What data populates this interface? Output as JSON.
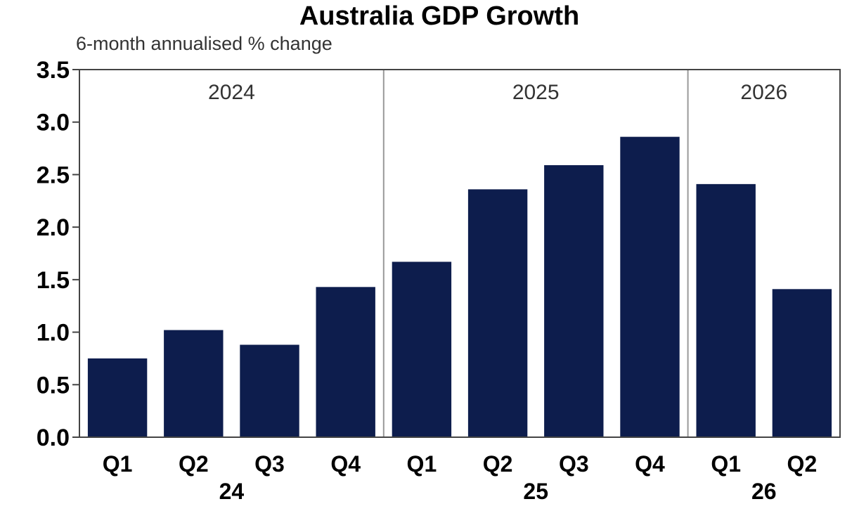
{
  "chart_data": {
    "type": "bar",
    "title": "Australia GDP Growth",
    "subtitle": "6-month annualised % change",
    "categories": [
      "Q1",
      "Q2",
      "Q3",
      "Q4",
      "Q1",
      "Q2",
      "Q3",
      "Q4",
      "Q1",
      "Q2"
    ],
    "values": [
      0.75,
      1.02,
      0.88,
      1.43,
      1.67,
      2.36,
      2.59,
      2.86,
      2.41,
      1.41
    ],
    "year_groups": [
      {
        "label": "2024",
        "axis_label": "24",
        "count": 4
      },
      {
        "label": "2025",
        "axis_label": "25",
        "count": 4
      },
      {
        "label": "2026",
        "axis_label": "26",
        "count": 2
      }
    ],
    "ylim": [
      0,
      3.5
    ],
    "yticks": [
      "0.0",
      "0.5",
      "1.0",
      "1.5",
      "2.0",
      "2.5",
      "3.0",
      "3.5"
    ],
    "xlabel": "",
    "ylabel": "",
    "grid": false,
    "colors": {
      "bar": "#0d1d4d",
      "divider": "#999999"
    }
  }
}
